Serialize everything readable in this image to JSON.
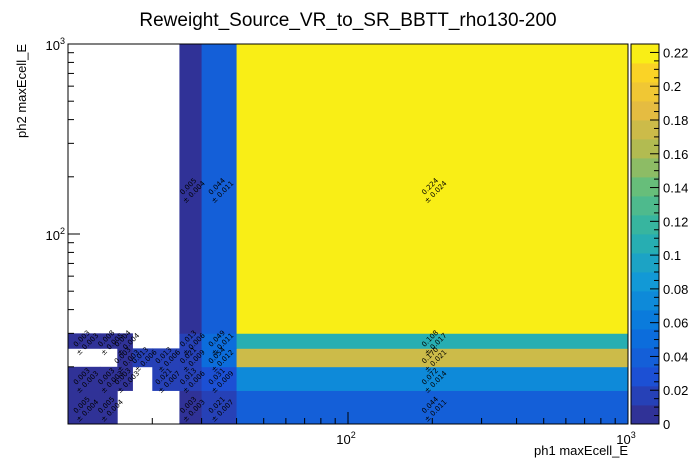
{
  "chart_data": {
    "type": "heatmap",
    "title": "Reweight_Source_VR_to_SR_BBTT_rho130-200",
    "xlabel": "ph1 maxEcell_E",
    "ylabel": "ph2 maxEcell_E",
    "x_scale": "log",
    "y_scale": "log",
    "xlim": [
      10,
      1000
    ],
    "ylim": [
      10,
      1000
    ],
    "x_tick_labels": [
      {
        "value": 100,
        "base": "10",
        "exp": "2"
      },
      {
        "value": 1000,
        "base": "10",
        "exp": "3"
      }
    ],
    "y_tick_labels": [
      {
        "value": 100,
        "base": "10",
        "exp": "2"
      },
      {
        "value": 1000,
        "base": "10",
        "exp": "3"
      }
    ],
    "x_bin_edges": [
      10,
      13,
      15,
      17,
      20,
      25,
      30,
      40,
      1000
    ],
    "y_bin_edges": [
      10,
      15,
      20,
      25,
      30,
      40,
      1000
    ],
    "z_range": [
      0,
      0.225
    ],
    "colorbar_ticks": [
      "0",
      "0.02",
      "0.04",
      "0.06",
      "0.08",
      "0.1",
      "0.12",
      "0.14",
      "0.16",
      "0.18",
      "0.2",
      "0.22"
    ],
    "cells": [
      {
        "x": [
          10,
          13
        ],
        "y": [
          10,
          15
        ],
        "z": 0.005,
        "value": "0.005",
        "error": "± 0.004"
      },
      {
        "x": [
          13,
          15
        ],
        "y": [
          10,
          15
        ],
        "z": 0.005,
        "value": "0.005",
        "error": "± 0.004"
      },
      {
        "x": [
          25,
          30
        ],
        "y": [
          10,
          15
        ],
        "z": 0.003,
        "value": "0.003",
        "error": "± 0.003"
      },
      {
        "x": [
          30,
          40
        ],
        "y": [
          10,
          15
        ],
        "z": 0.021,
        "value": "0.021",
        "error": "± 0.007"
      },
      {
        "x": [
          40,
          1000
        ],
        "y": [
          10,
          15
        ],
        "z": 0.044,
        "value": "0.044",
        "error": "± 0.011"
      },
      {
        "x": [
          10,
          13
        ],
        "y": [
          15,
          20
        ],
        "z": 0.003,
        "value": "0.003",
        "error": "± 0.003"
      },
      {
        "x": [
          13,
          15
        ],
        "y": [
          15,
          20
        ],
        "z": 0.003,
        "value": "0.003",
        "error": "± 0.003"
      },
      {
        "x": [
          15,
          17
        ],
        "y": [
          15,
          20
        ],
        "z": 0.003,
        "value": "0.003",
        "error": "± 0.003"
      },
      {
        "x": [
          20,
          25
        ],
        "y": [
          15,
          20
        ],
        "z": 0.021,
        "value": "0.021",
        "error": "± 0.007"
      },
      {
        "x": [
          25,
          30
        ],
        "y": [
          15,
          20
        ],
        "z": 0.013,
        "value": "0.013",
        "error": "± 0.006"
      },
      {
        "x": [
          30,
          40
        ],
        "y": [
          15,
          20
        ],
        "z": 0.031,
        "value": "0.031",
        "error": "± 0.009"
      },
      {
        "x": [
          40,
          1000
        ],
        "y": [
          15,
          20
        ],
        "z": 0.072,
        "value": "0.072",
        "error": "± 0.014"
      },
      {
        "x": [
          15,
          17
        ],
        "y": [
          20,
          25
        ],
        "z": 0.003,
        "value": "0.003",
        "error": "± 0.003"
      },
      {
        "x": [
          17,
          20
        ],
        "y": [
          20,
          25
        ],
        "z": 0.013,
        "value": "0.013",
        "error": "± 0.006"
      },
      {
        "x": [
          20,
          25
        ],
        "y": [
          20,
          25
        ],
        "z": 0.013,
        "value": "0.013",
        "error": "± 0.006"
      },
      {
        "x": [
          25,
          30
        ],
        "y": [
          20,
          25
        ],
        "z": 0.021,
        "value": "0.021",
        "error": "± 0.009"
      },
      {
        "x": [
          30,
          40
        ],
        "y": [
          20,
          25
        ],
        "z": 0.054,
        "value": "0.054",
        "error": "± 0.012"
      },
      {
        "x": [
          40,
          1000
        ],
        "y": [
          20,
          25
        ],
        "z": 0.17,
        "value": "0.170",
        "error": "± 0.021"
      },
      {
        "x": [
          10,
          13
        ],
        "y": [
          25,
          30
        ],
        "z": 0.003,
        "value": "0.003",
        "error": "± 0.003"
      },
      {
        "x": [
          13,
          15
        ],
        "y": [
          25,
          30
        ],
        "z": 0.008,
        "value": "0.008",
        "error": "± 0.005"
      },
      {
        "x": [
          15,
          17
        ],
        "y": [
          25,
          30
        ],
        "z": 0.004,
        "value": "0.004",
        "error": "± 0.004"
      },
      {
        "x": [
          25,
          30
        ],
        "y": [
          25,
          30
        ],
        "z": 0.013,
        "value": "0.013",
        "error": "± 0.006"
      },
      {
        "x": [
          30,
          40
        ],
        "y": [
          25,
          30
        ],
        "z": 0.049,
        "value": "0.049",
        "error": "± 0.011"
      },
      {
        "x": [
          40,
          1000
        ],
        "y": [
          25,
          30
        ],
        "z": 0.108,
        "value": "0.108",
        "error": "± 0.017"
      },
      {
        "x": [
          25,
          30
        ],
        "y": [
          30,
          1000
        ],
        "z": 0.005,
        "value": "0.005",
        "error": "± 0.004"
      },
      {
        "x": [
          30,
          40
        ],
        "y": [
          30,
          1000
        ],
        "z": 0.044,
        "value": "0.044",
        "error": "± 0.011"
      },
      {
        "x": [
          40,
          1000
        ],
        "y": [
          30,
          1000
        ],
        "z": 0.224,
        "value": "0.224",
        "error": "± 0.024"
      }
    ]
  }
}
